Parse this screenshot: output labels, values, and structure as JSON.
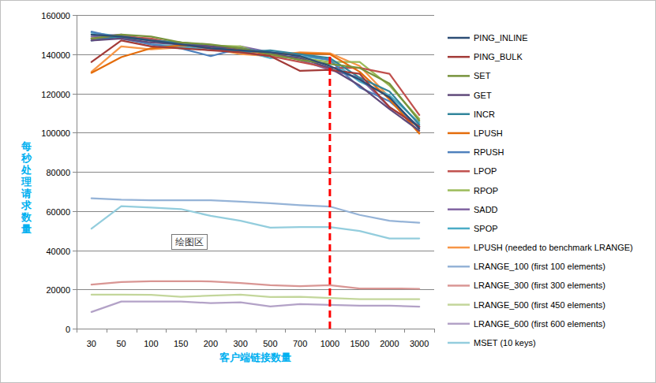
{
  "chart_data": {
    "type": "line",
    "x_label": "客户端链接数量",
    "y_label": "每秒处理请求数量",
    "categories": [
      "30",
      "50",
      "100",
      "150",
      "200",
      "300",
      "500",
      "700",
      "1000",
      "1500",
      "2000",
      "3000"
    ],
    "ylim": [
      0,
      160000
    ],
    "yticks": [
      0,
      20000,
      40000,
      60000,
      80000,
      100000,
      120000,
      140000,
      160000
    ],
    "grid": true,
    "legend": "right",
    "annotations": [
      "绘图区"
    ],
    "reference_lines": [
      {
        "x": "1000",
        "y": [
          0,
          140000
        ],
        "color": "#ff0000",
        "line_style": "dashed"
      }
    ],
    "series": [
      {
        "name": "PING_INLINE",
        "color": "#2c4d75",
        "values": [
          150000,
          149000,
          147000,
          145000,
          143000,
          142000,
          141000,
          139000,
          134000,
          127000,
          118000,
          102000
        ]
      },
      {
        "name": "PING_BULK",
        "color": "#a33b38",
        "values": [
          136000,
          147000,
          144000,
          143000,
          142000,
          141000,
          139000,
          131500,
          132000,
          130000,
          113000,
          103000
        ]
      },
      {
        "name": "SET",
        "color": "#77933c",
        "values": [
          148000,
          150000,
          149000,
          146000,
          145000,
          143000,
          140000,
          137000,
          135000,
          133000,
          125000,
          106000
        ]
      },
      {
        "name": "GET",
        "color": "#604a7b",
        "values": [
          147000,
          148000,
          146000,
          145000,
          144000,
          143000,
          140000,
          138000,
          133000,
          124000,
          112000,
          101000
        ]
      },
      {
        "name": "INCR",
        "color": "#31859c",
        "values": [
          147000,
          149000,
          147000,
          146000,
          144000,
          141000,
          142000,
          140000,
          138000,
          128000,
          121000,
          104000
        ]
      },
      {
        "name": "LPUSH",
        "color": "#e46c0a",
        "values": [
          130500,
          138500,
          143000,
          144500,
          144000,
          142000,
          140000,
          140500,
          140000,
          131000,
          117000,
          99500
        ]
      },
      {
        "name": "RPUSH",
        "color": "#4f81bd",
        "values": [
          151500,
          148000,
          145000,
          143000,
          139000,
          143000,
          141000,
          140000,
          137000,
          123000,
          116000,
          103000
        ]
      },
      {
        "name": "LPOP",
        "color": "#c0504d",
        "values": [
          148000,
          149000,
          148000,
          145000,
          143000,
          141000,
          139000,
          136000,
          133000,
          133000,
          130000,
          109000
        ]
      },
      {
        "name": "RPOP",
        "color": "#9bbb59",
        "values": [
          148000,
          149000,
          147000,
          146000,
          144500,
          144000,
          139000,
          138000,
          136000,
          136000,
          124000,
          107000
        ]
      },
      {
        "name": "SADD",
        "color": "#8064a2",
        "values": [
          149000,
          150000,
          147000,
          145000,
          143000,
          144000,
          141000,
          137000,
          132000,
          128000,
          113000,
          103000
        ]
      },
      {
        "name": "SPOP",
        "color": "#4bacc6",
        "values": [
          151000,
          149000,
          145000,
          144000,
          142000,
          142000,
          138000,
          139000,
          137000,
          126000,
          119000,
          105000
        ]
      },
      {
        "name": "LPUSH (needed to benchmark LRANGE)",
        "color": "#f79646",
        "values": [
          131000,
          144000,
          142500,
          143500,
          143000,
          140000,
          139000,
          141000,
          140500,
          134000,
          118000,
          100000
        ]
      },
      {
        "name": "LRANGE_100 (first 100 elements)",
        "color": "#95b3d7",
        "values": [
          66500,
          65800,
          65500,
          65500,
          65500,
          64800,
          64000,
          63000,
          62300,
          58000,
          55000,
          54000
        ]
      },
      {
        "name": "LRANGE_300 (first 300 elements)",
        "color": "#d99694",
        "values": [
          22500,
          23800,
          24200,
          24200,
          24100,
          23300,
          22200,
          21700,
          22200,
          20500,
          20500,
          20300
        ]
      },
      {
        "name": "LRANGE_500 (first 450 elements)",
        "color": "#c3d69b",
        "values": [
          17300,
          17300,
          17200,
          16200,
          16800,
          17300,
          16100,
          16200,
          15600,
          15000,
          15000,
          15000
        ]
      },
      {
        "name": "LRANGE_600 (first 600 elements)",
        "color": "#b3a2c7",
        "values": [
          8500,
          13800,
          13800,
          13800,
          13000,
          13400,
          11300,
          12500,
          12100,
          11700,
          11700,
          11200
        ]
      },
      {
        "name": "MSET (10 keys)",
        "color": "#93cddd",
        "values": [
          51000,
          62500,
          61800,
          61000,
          57500,
          55000,
          51500,
          51800,
          51800,
          49800,
          46000,
          46000
        ]
      }
    ]
  }
}
